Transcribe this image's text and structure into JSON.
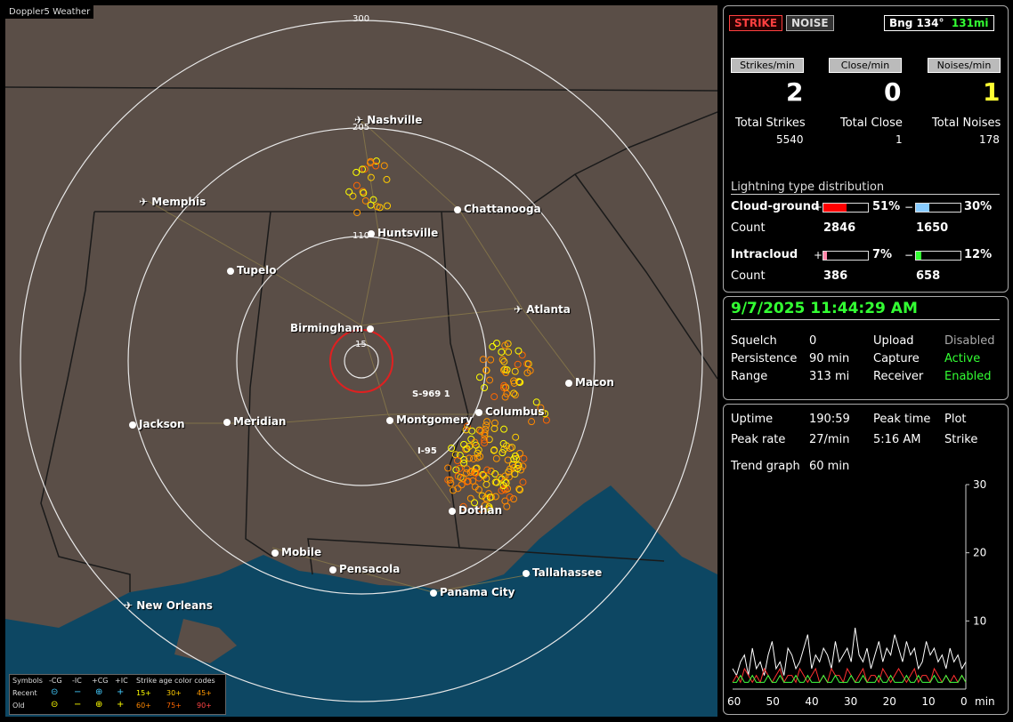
{
  "map": {
    "title": "Doppler5 Weather",
    "rings": [
      "300",
      "205",
      "110",
      "15"
    ],
    "cities": [
      {
        "name": "Nashville",
        "icon": "airport-icon"
      },
      {
        "name": "Memphis",
        "icon": "airport-icon"
      },
      {
        "name": "Chattanooga",
        "icon": "city-dot-icon"
      },
      {
        "name": "Huntsville",
        "icon": "city-dot-icon"
      },
      {
        "name": "Tupelo",
        "icon": "city-dot-icon"
      },
      {
        "name": "Atlanta",
        "icon": "airport-icon"
      },
      {
        "name": "Birmingham",
        "icon": "city-dot-icon"
      },
      {
        "name": "Macon",
        "icon": "city-dot-icon"
      },
      {
        "name": "Jackson",
        "icon": "city-dot-icon"
      },
      {
        "name": "Meridian",
        "icon": "city-dot-icon"
      },
      {
        "name": "Montgomery",
        "icon": "city-dot-icon"
      },
      {
        "name": "Columbus",
        "icon": "city-dot-icon"
      },
      {
        "name": "Dothan",
        "icon": "city-dot-icon"
      },
      {
        "name": "Mobile",
        "icon": "city-dot-icon"
      },
      {
        "name": "Pensacola",
        "icon": "city-dot-icon"
      },
      {
        "name": "Tallahassee",
        "icon": "city-dot-icon"
      },
      {
        "name": "Panama City",
        "icon": "city-dot-icon"
      },
      {
        "name": "New Orleans",
        "icon": "airport-icon"
      }
    ],
    "roads": [
      "S-969 1",
      "I-95"
    ],
    "legend": {
      "symbols": "Symbols",
      "cg_minus": "-CG",
      "ic_minus": "-IC",
      "cg_plus": "+CG",
      "ic_plus": "+IC",
      "age_title": "Strike age color codes",
      "recent": "Recent",
      "old": "Old",
      "recent_ages": [
        "15+",
        "30+",
        "45+"
      ],
      "old_ages": [
        "60+",
        "75+",
        "90+"
      ]
    }
  },
  "top": {
    "strike_label": "STRIKE",
    "noise_label": "NOISE",
    "bearing": "Bng 134°",
    "distance": "131mi",
    "rate_headers": [
      "Strikes/min",
      "Close/min",
      "Noises/min"
    ],
    "rates": [
      "2",
      "0",
      "1"
    ],
    "total_labels": [
      "Total Strikes",
      "Total Close",
      "Total Noises"
    ],
    "totals": [
      "5540",
      "1",
      "178"
    ],
    "dist_title": "Lightning type distribution",
    "cloud_ground": "Cloud-ground",
    "intracloud": "Intracloud",
    "count": "Count",
    "plus": "+",
    "minus": "−",
    "cg_plus_pct": "51%",
    "cg_minus_pct": "30%",
    "cg_plus_count": "2846",
    "cg_minus_count": "1650",
    "ic_plus_pct": "7%",
    "ic_minus_pct": "12%",
    "ic_plus_count": "386",
    "ic_minus_count": "658",
    "cg_plus_fill": 0.51,
    "cg_minus_fill": 0.3,
    "ic_plus_fill": 0.07,
    "ic_minus_fill": 0.12
  },
  "status": {
    "datetime": "9/7/2025 11:44:29 AM",
    "squelch_l": "Squelch",
    "squelch": "0",
    "persistence_l": "Persistence",
    "persistence": "90 min",
    "range_l": "Range",
    "range": "313 mi",
    "upload_l": "Upload",
    "upload": "Disabled",
    "capture_l": "Capture",
    "capture": "Active",
    "receiver_l": "Receiver",
    "receiver": "Enabled"
  },
  "trend": {
    "uptime_l": "Uptime",
    "uptime": "190:59",
    "peaktime_l": "Peak time",
    "peaktime": "5:16 AM",
    "plot_l": "Plot",
    "plot": "Strike",
    "peakrate_l": "Peak rate",
    "peakrate": "27/min",
    "graph_l": "Trend graph",
    "graph": "60 min",
    "y_ticks": [
      "30",
      "20",
      "10"
    ],
    "x_ticks": [
      "60",
      "50",
      "40",
      "30",
      "20",
      "10",
      "0"
    ],
    "x_unit": "min"
  },
  "chart_data": {
    "type": "line",
    "title": "",
    "xlabel": "min",
    "ylabel": "",
    "xlim": [
      60,
      0
    ],
    "ylim": [
      0,
      30
    ],
    "series": [
      {
        "color": "#ffffff",
        "values": [
          3,
          2,
          4,
          5,
          2,
          6,
          3,
          4,
          2,
          5,
          7,
          3,
          4,
          2,
          6,
          5,
          3,
          4,
          6,
          8,
          3,
          5,
          4,
          6,
          5,
          3,
          7,
          4,
          5,
          6,
          4,
          9,
          5,
          4,
          6,
          3,
          5,
          7,
          4,
          6,
          5,
          8,
          6,
          4,
          7,
          5,
          6,
          3,
          4,
          7,
          5,
          6,
          4,
          5,
          3,
          6,
          4,
          5,
          3,
          4
        ]
      },
      {
        "color": "#ff3030",
        "values": [
          1,
          2,
          1,
          3,
          2,
          1,
          2,
          1,
          3,
          2,
          1,
          2,
          3,
          1,
          2,
          2,
          1,
          3,
          2,
          1,
          2,
          3,
          1,
          2,
          1,
          3,
          2,
          2,
          1,
          3,
          2,
          1,
          2,
          3,
          1,
          2,
          2,
          1,
          3,
          2,
          1,
          2,
          3,
          2,
          1,
          2,
          3,
          1,
          2,
          2,
          1,
          3,
          2,
          1,
          2,
          1,
          2,
          1,
          2,
          1
        ]
      },
      {
        "color": "#40ff40",
        "values": [
          1,
          1,
          2,
          1,
          1,
          2,
          1,
          1,
          1,
          2,
          1,
          1,
          2,
          1,
          1,
          1,
          2,
          1,
          1,
          2,
          1,
          1,
          1,
          2,
          1,
          1,
          2,
          1,
          1,
          1,
          2,
          1,
          1,
          2,
          1,
          1,
          1,
          2,
          1,
          1,
          2,
          1,
          1,
          1,
          2,
          1,
          1,
          2,
          1,
          1,
          1,
          2,
          1,
          1,
          2,
          1,
          1,
          1,
          2,
          1
        ]
      }
    ]
  }
}
